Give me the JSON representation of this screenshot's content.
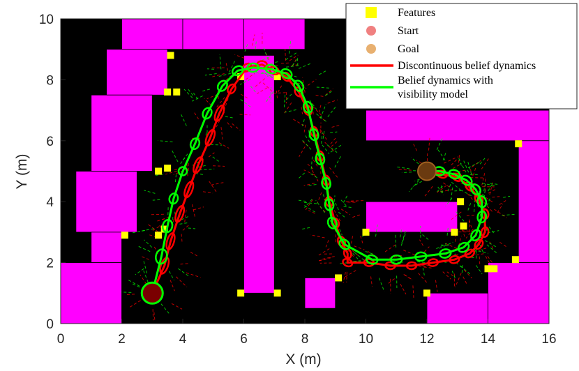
{
  "chart_data": {
    "type": "scatter",
    "xlabel": "X (m)",
    "ylabel": "Y (m)",
    "xlim": [
      0,
      16
    ],
    "ylim": [
      0,
      10
    ],
    "xticks": [
      "0",
      "2",
      "4",
      "6",
      "8",
      "10",
      "12",
      "14",
      "16"
    ],
    "yticks": [
      "0",
      "2",
      "4",
      "6",
      "8",
      "10"
    ],
    "legend_position": "top-right",
    "colors": {
      "background": "#000000",
      "obstacle": "#ff00ff",
      "feature": "#ffff00",
      "start": "#f08080",
      "goal": "#e8b070",
      "discontinuous": "#ff0000",
      "visibility": "#00ff00"
    },
    "legend": [
      {
        "label": "Features",
        "marker": "square",
        "color": "#ffff00"
      },
      {
        "label": "Start",
        "marker": "circle",
        "color": "#f08080"
      },
      {
        "label": "Goal",
        "marker": "circle",
        "color": "#e8b070"
      },
      {
        "label": "Discontinuous belief dynamics",
        "marker": "line",
        "color": "#ff0000"
      },
      {
        "label": "Belief dynamics with visibility model",
        "label_lines": [
          "Belief dynamics with",
          "visibility model"
        ],
        "marker": "line",
        "color": "#00ff00"
      }
    ],
    "obstacles": [
      [
        2,
        9,
        2,
        1
      ],
      [
        4,
        9,
        2,
        1
      ],
      [
        6,
        9,
        2,
        1
      ],
      [
        1.5,
        7.5,
        2,
        1.5
      ],
      [
        1,
        5,
        2,
        2.5
      ],
      [
        0.5,
        3,
        2,
        2
      ],
      [
        1,
        2,
        1,
        1
      ],
      [
        0,
        0,
        2,
        2
      ],
      [
        6,
        1,
        1,
        7.8
      ],
      [
        8,
        0.5,
        1,
        1
      ],
      [
        10,
        3,
        3,
        1
      ],
      [
        10,
        6,
        6,
        1
      ],
      [
        15,
        2,
        1,
        4
      ],
      [
        14,
        0,
        2,
        2
      ],
      [
        12,
        0,
        2,
        1
      ]
    ],
    "features": [
      [
        3.6,
        8.8
      ],
      [
        3.5,
        7.6
      ],
      [
        3.8,
        7.6
      ],
      [
        3.5,
        5.1
      ],
      [
        3.2,
        5.0
      ],
      [
        3.4,
        3.1
      ],
      [
        3.2,
        2.9
      ],
      [
        2.1,
        2.9
      ],
      [
        5.9,
        8.1
      ],
      [
        7.1,
        8.1
      ],
      [
        5.9,
        1.0
      ],
      [
        7.1,
        1.0
      ],
      [
        9.1,
        1.5
      ],
      [
        10.0,
        3.0
      ],
      [
        12.9,
        3.0
      ],
      [
        13.1,
        4.0
      ],
      [
        13.2,
        3.2
      ],
      [
        14.0,
        1.8
      ],
      [
        14.2,
        1.8
      ],
      [
        14.9,
        2.1
      ],
      [
        15.0,
        5.9
      ],
      [
        12.0,
        1.0
      ]
    ],
    "start": {
      "x": 3.0,
      "y": 1.0
    },
    "goal": {
      "x": 12.0,
      "y": 5.0
    },
    "series": [
      {
        "name": "Discontinuous belief dynamics",
        "color": "#ff0000",
        "x": [
          3.0,
          3.4,
          3.6,
          3.9,
          4.2,
          4.5,
          4.9,
          5.2,
          5.6,
          6.1,
          6.6,
          7.0,
          7.4,
          7.8,
          8.1,
          8.3,
          8.5,
          8.7,
          8.8,
          9.0,
          9.2,
          9.4,
          9.4,
          10.1,
          10.8,
          11.5,
          12.2,
          12.9,
          13.4,
          13.7,
          13.9,
          13.9,
          13.7,
          13.4,
          13.0,
          12.5,
          12.0
        ],
        "y": [
          1.0,
          1.9,
          2.7,
          3.6,
          4.4,
          5.2,
          6.1,
          6.9,
          7.7,
          8.4,
          8.5,
          8.3,
          8.1,
          7.6,
          7.0,
          6.3,
          5.5,
          4.7,
          4.0,
          3.3,
          2.7,
          2.3,
          2.0,
          2.0,
          1.9,
          1.9,
          2.0,
          2.1,
          2.3,
          2.6,
          3.0,
          3.6,
          4.1,
          4.5,
          4.8,
          4.9,
          5.0
        ]
      },
      {
        "name": "Belief dynamics with visibility model",
        "color": "#00ff00",
        "x": [
          3.0,
          3.3,
          3.5,
          3.7,
          4.0,
          4.4,
          4.8,
          5.3,
          5.8,
          6.3,
          6.9,
          7.4,
          7.8,
          8.1,
          8.3,
          8.5,
          8.7,
          8.8,
          8.9,
          9.3,
          10.2,
          11.0,
          11.8,
          12.6,
          13.2,
          13.6,
          13.8,
          13.8,
          13.6,
          13.3,
          12.9,
          12.4,
          12.0
        ],
        "y": [
          1.0,
          2.2,
          3.2,
          4.1,
          5.0,
          5.9,
          6.9,
          7.8,
          8.3,
          8.4,
          8.35,
          8.2,
          7.8,
          7.1,
          6.2,
          5.4,
          4.6,
          3.9,
          3.3,
          2.6,
          2.1,
          2.1,
          2.2,
          2.3,
          2.5,
          2.9,
          3.5,
          4.0,
          4.4,
          4.7,
          4.9,
          5.0,
          5.0
        ]
      }
    ]
  }
}
